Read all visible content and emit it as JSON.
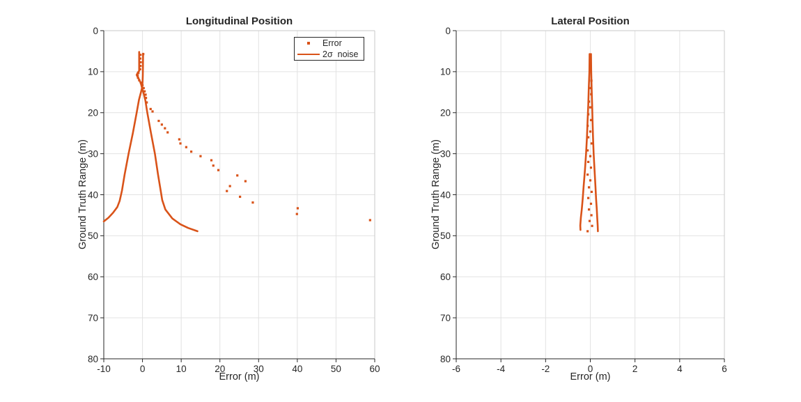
{
  "colors": {
    "accent": "#d95319",
    "axis": "#262626",
    "grid": "#e2e2e2",
    "box": "#c9c9c9",
    "text": "#262626",
    "background": "#ffffff"
  },
  "legend": {
    "entries": [
      {
        "label": "Error",
        "marker": "dot"
      },
      {
        "label": "2σ  noise",
        "marker": "line"
      }
    ]
  },
  "chart_data": [
    {
      "id": "longitudinal-position",
      "type": "scatter",
      "title": "Longitudinal Position",
      "xlabel": "Error (m)",
      "ylabel": "Ground Truth Range (m)",
      "xlim": [
        -10,
        60
      ],
      "ylim": [
        0,
        80
      ],
      "y_axis_reversed": true,
      "xticks": [
        -10,
        0,
        10,
        20,
        30,
        40,
        50,
        60
      ],
      "yticks": [
        0,
        10,
        20,
        30,
        40,
        50,
        60,
        70,
        80
      ],
      "grid": true,
      "legend_position": "top-right",
      "series": [
        {
          "name": "Error",
          "type": "scatter",
          "marker": "square",
          "size": 3.2,
          "points": [
            [
              0.2,
              5.7
            ],
            [
              -0.5,
              5.9
            ],
            [
              -0.55,
              6.8
            ],
            [
              -0.45,
              7.7
            ],
            [
              -0.5,
              8.6
            ],
            [
              -0.6,
              9.4
            ],
            [
              -1.05,
              10.3
            ],
            [
              -1.25,
              10.9
            ],
            [
              -1.15,
              11.5
            ],
            [
              -0.85,
              12.1
            ],
            [
              -0.4,
              12.7
            ],
            [
              0.0,
              13.3
            ],
            [
              0.3,
              14.0
            ],
            [
              0.55,
              14.8
            ],
            [
              0.8,
              15.6
            ],
            [
              0.9,
              16.4
            ],
            [
              1.1,
              17.5
            ],
            [
              2.1,
              19.1
            ],
            [
              2.6,
              19.7
            ],
            [
              4.2,
              22.0
            ],
            [
              5.0,
              22.9
            ],
            [
              5.8,
              23.8
            ],
            [
              6.5,
              24.8
            ],
            [
              9.5,
              26.5
            ],
            [
              9.8,
              27.5
            ],
            [
              11.3,
              28.4
            ],
            [
              12.6,
              29.5
            ],
            [
              15.0,
              30.6
            ],
            [
              17.8,
              31.6
            ],
            [
              18.3,
              32.9
            ],
            [
              19.6,
              34.0
            ],
            [
              24.5,
              35.3
            ],
            [
              26.6,
              36.7
            ],
            [
              22.6,
              37.9
            ],
            [
              21.8,
              39.1
            ],
            [
              25.2,
              40.5
            ],
            [
              28.5,
              41.9
            ],
            [
              40.1,
              43.3
            ],
            [
              39.9,
              44.7
            ],
            [
              58.8,
              46.2
            ]
          ]
        },
        {
          "name": "2σ noise (upper envelope)",
          "type": "line",
          "width": 2.6,
          "points": [
            [
              -0.85,
              5.2
            ],
            [
              -0.85,
              9.8
            ],
            [
              -1.2,
              10.2
            ],
            [
              -1.5,
              10.8
            ],
            [
              -1.25,
              11.3
            ],
            [
              -0.8,
              12.0
            ],
            [
              -0.4,
              12.9
            ],
            [
              -0.1,
              14.0
            ],
            [
              0.3,
              15.3
            ],
            [
              0.75,
              17.0
            ],
            [
              1.25,
              20.0
            ],
            [
              2.2,
              25.0
            ],
            [
              3.2,
              30.0
            ],
            [
              4.0,
              35.0
            ],
            [
              4.7,
              39.0
            ],
            [
              5.1,
              41.3
            ],
            [
              5.9,
              43.6
            ],
            [
              7.7,
              45.8
            ],
            [
              9.8,
              47.2
            ],
            [
              11.8,
              48.1
            ],
            [
              14.2,
              48.9
            ]
          ]
        },
        {
          "name": "2σ noise (lower envelope)",
          "type": "line",
          "width": 2.6,
          "points": [
            [
              0.15,
              5.6
            ],
            [
              0.12,
              9.0
            ],
            [
              0.08,
              11.0
            ],
            [
              0.02,
              12.5
            ],
            [
              -0.08,
              13.8
            ],
            [
              -0.45,
              15.2
            ],
            [
              -0.9,
              16.8
            ],
            [
              -1.5,
              20.0
            ],
            [
              -2.5,
              25.0
            ],
            [
              -3.6,
              30.0
            ],
            [
              -4.6,
              35.0
            ],
            [
              -5.3,
              39.0
            ],
            [
              -5.9,
              41.5
            ],
            [
              -6.5,
              43.0
            ],
            [
              -7.6,
              44.4
            ],
            [
              -8.8,
              45.6
            ],
            [
              -10.0,
              46.5
            ]
          ]
        }
      ]
    },
    {
      "id": "lateral-position",
      "type": "scatter",
      "title": "Lateral Position",
      "xlabel": "Error (m)",
      "ylabel": "Ground Truth Range (m)",
      "xlim": [
        -6,
        6
      ],
      "ylim": [
        0,
        80
      ],
      "y_axis_reversed": true,
      "xticks": [
        -6,
        -4,
        -2,
        0,
        2,
        4,
        6
      ],
      "yticks": [
        0,
        10,
        20,
        30,
        40,
        50,
        60,
        70,
        80
      ],
      "grid": true,
      "legend_position": "none",
      "series": [
        {
          "name": "Error",
          "type": "scatter",
          "marker": "square",
          "size": 3.2,
          "points": [
            [
              0.05,
              12.2
            ],
            [
              0.02,
              14.0
            ],
            [
              0.04,
              15.5
            ],
            [
              -0.06,
              17.3
            ],
            [
              0.0,
              18.7
            ],
            [
              -0.09,
              20.4
            ],
            [
              0.03,
              21.8
            ],
            [
              -0.12,
              23.2
            ],
            [
              0.0,
              24.6
            ],
            [
              -0.09,
              26.0
            ],
            [
              0.06,
              27.5
            ],
            [
              -0.12,
              29.2
            ],
            [
              0.0,
              30.6
            ],
            [
              -0.09,
              32.0
            ],
            [
              0.03,
              33.4
            ],
            [
              -0.12,
              35.1
            ],
            [
              0.0,
              36.5
            ],
            [
              -0.06,
              38.2
            ],
            [
              0.06,
              39.3
            ],
            [
              -0.09,
              40.8
            ],
            [
              0.03,
              42.2
            ],
            [
              -0.06,
              43.6
            ],
            [
              0.05,
              45.0
            ],
            [
              -0.03,
              46.4
            ],
            [
              0.08,
              47.6
            ],
            [
              -0.12,
              48.9
            ]
          ]
        },
        {
          "name": "2σ noise (upper envelope)",
          "type": "line",
          "width": 2.6,
          "points": [
            [
              0.03,
              5.7
            ],
            [
              0.04,
              10.0
            ],
            [
              0.06,
              14.0
            ],
            [
              0.08,
              18.0
            ],
            [
              0.1,
              22.0
            ],
            [
              0.12,
              26.0
            ],
            [
              0.15,
              30.0
            ],
            [
              0.19,
              34.0
            ],
            [
              0.23,
              38.0
            ],
            [
              0.26,
              41.0
            ],
            [
              0.29,
              43.5
            ],
            [
              0.31,
              45.5
            ],
            [
              0.33,
              47.5
            ],
            [
              0.34,
              48.9
            ]
          ]
        },
        {
          "name": "2σ noise (lower envelope)",
          "type": "line",
          "width": 2.6,
          "points": [
            [
              -0.03,
              5.7
            ],
            [
              -0.04,
              10.0
            ],
            [
              -0.07,
              14.0
            ],
            [
              -0.09,
              18.0
            ],
            [
              -0.12,
              22.0
            ],
            [
              -0.15,
              26.0
            ],
            [
              -0.19,
              30.0
            ],
            [
              -0.24,
              34.0
            ],
            [
              -0.3,
              38.0
            ],
            [
              -0.34,
              41.0
            ],
            [
              -0.38,
              43.5
            ],
            [
              -0.42,
              45.5
            ],
            [
              -0.45,
              47.5
            ],
            [
              -0.44,
              48.6
            ]
          ]
        }
      ]
    }
  ]
}
